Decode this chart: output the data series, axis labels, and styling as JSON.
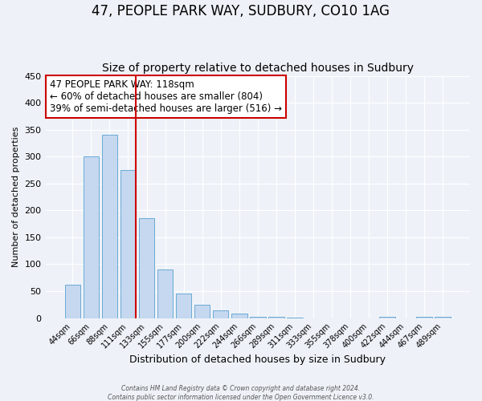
{
  "title": "47, PEOPLE PARK WAY, SUDBURY, CO10 1AG",
  "subtitle": "Size of property relative to detached houses in Sudbury",
  "xlabel": "Distribution of detached houses by size in Sudbury",
  "ylabel": "Number of detached properties",
  "bar_labels": [
    "44sqm",
    "66sqm",
    "88sqm",
    "111sqm",
    "133sqm",
    "155sqm",
    "177sqm",
    "200sqm",
    "222sqm",
    "244sqm",
    "266sqm",
    "289sqm",
    "311sqm",
    "333sqm",
    "355sqm",
    "378sqm",
    "400sqm",
    "422sqm",
    "444sqm",
    "467sqm",
    "489sqm"
  ],
  "bar_values": [
    62,
    301,
    340,
    275,
    185,
    90,
    45,
    24,
    15,
    8,
    3,
    2,
    1,
    0,
    0,
    0,
    0,
    3,
    0,
    3,
    2
  ],
  "bar_color": "#c5d8f0",
  "bar_edge_color": "#6aaad4",
  "vline_color": "#cc0000",
  "vline_bar_index": 3,
  "annotation_title": "47 PEOPLE PARK WAY: 118sqm",
  "annotation_line1": "← 60% of detached houses are smaller (804)",
  "annotation_line2": "39% of semi-detached houses are larger (516) →",
  "annotation_box_color": "#cc0000",
  "ylim": [
    0,
    450
  ],
  "yticks": [
    0,
    50,
    100,
    150,
    200,
    250,
    300,
    350,
    400,
    450
  ],
  "footer1": "Contains HM Land Registry data © Crown copyright and database right 2024.",
  "footer2": "Contains public sector information licensed under the Open Government Licence v3.0.",
  "bg_color": "#eef2f8",
  "grid_color": "#ffffff",
  "title_fontsize": 12,
  "subtitle_fontsize": 10,
  "annotation_fontsize": 8.5
}
